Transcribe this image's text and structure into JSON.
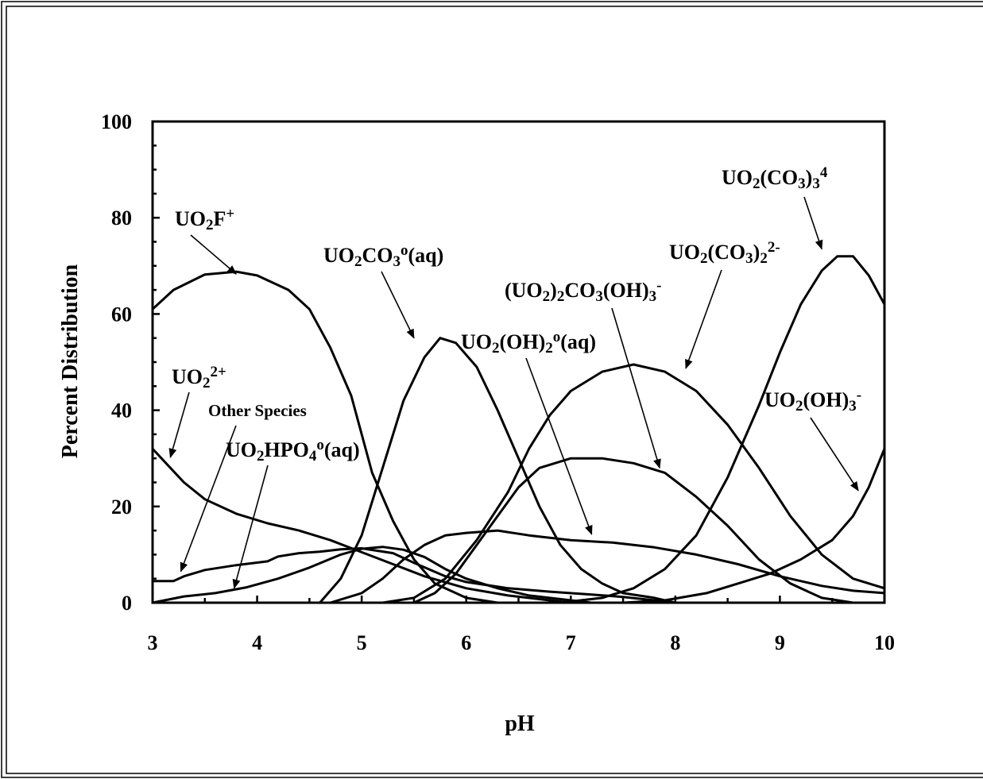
{
  "chart_data": {
    "type": "line",
    "title": "",
    "xlabel": "pH",
    "ylabel": "Percent Distribution",
    "xlim": [
      3,
      10
    ],
    "ylim": [
      0,
      100
    ],
    "x_ticks": [
      "3",
      "4",
      "5",
      "6",
      "7",
      "8",
      "9",
      "10"
    ],
    "y_ticks": [
      "0",
      "20",
      "40",
      "60",
      "80",
      "100"
    ],
    "grid": false,
    "legend": "none",
    "line_color": "#000000",
    "series": [
      {
        "name": "UO2F+",
        "points": [
          [
            3.0,
            61
          ],
          [
            3.2,
            65
          ],
          [
            3.5,
            68.2
          ],
          [
            3.8,
            68.8
          ],
          [
            4.0,
            68
          ],
          [
            4.3,
            65
          ],
          [
            4.5,
            61
          ],
          [
            4.7,
            53
          ],
          [
            4.9,
            43
          ],
          [
            5.1,
            27
          ],
          [
            5.3,
            17
          ],
          [
            5.5,
            9
          ],
          [
            5.7,
            4
          ],
          [
            6.0,
            1
          ],
          [
            6.3,
            0
          ]
        ]
      },
      {
        "name": "UO2CO3o(aq)",
        "points": [
          [
            4.6,
            0
          ],
          [
            4.8,
            5
          ],
          [
            5.0,
            14
          ],
          [
            5.2,
            28
          ],
          [
            5.4,
            42
          ],
          [
            5.6,
            51
          ],
          [
            5.75,
            55
          ],
          [
            5.9,
            54
          ],
          [
            6.1,
            49
          ],
          [
            6.3,
            40
          ],
          [
            6.5,
            30
          ],
          [
            6.7,
            20
          ],
          [
            6.9,
            12
          ],
          [
            7.1,
            7
          ],
          [
            7.3,
            4
          ],
          [
            7.5,
            2
          ],
          [
            7.8,
            1
          ],
          [
            8.0,
            0
          ]
        ]
      },
      {
        "name": "UO2(CO3)2 2-",
        "points": [
          [
            5.2,
            0
          ],
          [
            5.5,
            1
          ],
          [
            5.8,
            5
          ],
          [
            6.1,
            13
          ],
          [
            6.4,
            23
          ],
          [
            6.6,
            32
          ],
          [
            6.8,
            39
          ],
          [
            7.0,
            44
          ],
          [
            7.3,
            48
          ],
          [
            7.6,
            49.5
          ],
          [
            7.9,
            48
          ],
          [
            8.2,
            44
          ],
          [
            8.5,
            37
          ],
          [
            8.8,
            28
          ],
          [
            9.1,
            18
          ],
          [
            9.4,
            10
          ],
          [
            9.7,
            5
          ],
          [
            10.0,
            3
          ]
        ]
      },
      {
        "name": "UO2(CO3)3 4-",
        "points": [
          [
            6.9,
            0
          ],
          [
            7.3,
            1
          ],
          [
            7.6,
            3
          ],
          [
            7.9,
            7
          ],
          [
            8.2,
            14
          ],
          [
            8.5,
            26
          ],
          [
            8.8,
            41
          ],
          [
            9.0,
            52
          ],
          [
            9.2,
            62
          ],
          [
            9.4,
            69
          ],
          [
            9.55,
            72
          ],
          [
            9.7,
            72
          ],
          [
            9.85,
            68
          ],
          [
            10.0,
            62
          ]
        ]
      },
      {
        "name": "(UO2)2CO3(OH)3-",
        "points": [
          [
            5.5,
            0
          ],
          [
            5.7,
            2
          ],
          [
            5.9,
            6
          ],
          [
            6.1,
            12
          ],
          [
            6.3,
            18
          ],
          [
            6.5,
            24
          ],
          [
            6.7,
            28
          ],
          [
            7.0,
            30
          ],
          [
            7.3,
            30
          ],
          [
            7.6,
            29
          ],
          [
            7.9,
            27
          ],
          [
            8.2,
            22
          ],
          [
            8.5,
            16
          ],
          [
            8.8,
            9
          ],
          [
            9.1,
            4
          ],
          [
            9.4,
            1
          ],
          [
            9.7,
            0
          ]
        ]
      },
      {
        "name": "UO2(OH)2o(aq)",
        "points": [
          [
            4.7,
            0
          ],
          [
            5.0,
            2
          ],
          [
            5.2,
            5
          ],
          [
            5.4,
            9
          ],
          [
            5.6,
            12
          ],
          [
            5.8,
            14
          ],
          [
            6.0,
            14.5
          ],
          [
            6.3,
            15
          ],
          [
            6.6,
            14
          ],
          [
            7.0,
            13
          ],
          [
            7.4,
            12.5
          ],
          [
            7.8,
            11.5
          ],
          [
            8.2,
            10
          ],
          [
            8.6,
            8
          ],
          [
            9.0,
            5.5
          ],
          [
            9.4,
            3.5
          ],
          [
            9.7,
            2.5
          ],
          [
            10.0,
            2
          ]
        ]
      },
      {
        "name": "UO2(OH)3-",
        "points": [
          [
            7.5,
            0
          ],
          [
            7.9,
            0.5
          ],
          [
            8.3,
            2
          ],
          [
            8.6,
            4
          ],
          [
            8.9,
            6
          ],
          [
            9.2,
            9
          ],
          [
            9.5,
            13
          ],
          [
            9.7,
            18
          ],
          [
            9.85,
            24
          ],
          [
            10.0,
            32
          ]
        ]
      },
      {
        "name": "UO2 2+",
        "points": [
          [
            3.0,
            32
          ],
          [
            3.15,
            28.5
          ],
          [
            3.3,
            25
          ],
          [
            3.5,
            21.5
          ],
          [
            3.8,
            18.5
          ],
          [
            4.1,
            16.5
          ],
          [
            4.4,
            15
          ],
          [
            4.7,
            13
          ],
          [
            5.0,
            10.5
          ],
          [
            5.3,
            8
          ],
          [
            5.6,
            5.5
          ],
          [
            6.0,
            3
          ],
          [
            6.4,
            1.5
          ],
          [
            6.8,
            0.5
          ],
          [
            7.0,
            0
          ]
        ]
      },
      {
        "name": "Other Species",
        "points": [
          [
            3.0,
            4.5
          ],
          [
            3.2,
            4.5
          ],
          [
            3.3,
            5.5
          ],
          [
            3.5,
            6.8
          ],
          [
            3.8,
            7.8
          ],
          [
            4.1,
            8.6
          ],
          [
            4.2,
            9.6
          ],
          [
            4.4,
            10.3
          ],
          [
            4.6,
            10.6
          ],
          [
            4.8,
            11.1
          ],
          [
            5.0,
            11.3
          ],
          [
            5.3,
            10.3
          ],
          [
            5.5,
            8.3
          ],
          [
            5.8,
            5.5
          ],
          [
            6.0,
            4.3
          ],
          [
            6.4,
            3
          ],
          [
            6.8,
            2.3
          ],
          [
            7.2,
            1.7
          ],
          [
            7.5,
            1.2
          ],
          [
            7.8,
            0.5
          ],
          [
            8.0,
            0
          ]
        ]
      },
      {
        "name": "UO2HPO4o(aq)",
        "points": [
          [
            3.0,
            0
          ],
          [
            3.3,
            1.3
          ],
          [
            3.6,
            2
          ],
          [
            3.9,
            3.2
          ],
          [
            4.2,
            5
          ],
          [
            4.5,
            7.3
          ],
          [
            4.8,
            10
          ],
          [
            5.0,
            11.2
          ],
          [
            5.2,
            11.6
          ],
          [
            5.4,
            11
          ],
          [
            5.6,
            9.5
          ],
          [
            5.8,
            7
          ],
          [
            6.0,
            5
          ],
          [
            6.3,
            3
          ],
          [
            6.6,
            1.5
          ],
          [
            7.0,
            0.5
          ],
          [
            7.2,
            0
          ]
        ]
      }
    ],
    "annotations": [
      {
        "name": "UO2F+",
        "parts": [
          {
            "t": "UO"
          },
          {
            "t": "2",
            "s": "sub"
          },
          {
            "t": "F"
          },
          {
            "t": "+",
            "s": "sup"
          }
        ],
        "at": [
          3.8,
          68.3
        ]
      },
      {
        "name": "UO2CO3o(aq)",
        "parts": [
          {
            "t": "UO"
          },
          {
            "t": "2",
            "s": "sub"
          },
          {
            "t": "CO"
          },
          {
            "t": "3",
            "s": "sub"
          },
          {
            "t": "o",
            "s": "sup"
          },
          {
            "t": "(aq)"
          }
        ],
        "at": [
          5.5,
          55
        ]
      },
      {
        "name": "UO2(CO3)3 4-",
        "parts": [
          {
            "t": "UO"
          },
          {
            "t": "2",
            "s": "sub"
          },
          {
            "t": "(CO"
          },
          {
            "t": "3",
            "s": "sub"
          },
          {
            "t": ")"
          },
          {
            "t": "3",
            "s": "sub"
          },
          {
            "t": "4",
            "s": "sup"
          }
        ],
        "at": [
          9.4,
          73.5
        ]
      },
      {
        "name": "UO2(CO3)2 2-",
        "parts": [
          {
            "t": "UO"
          },
          {
            "t": "2",
            "s": "sub"
          },
          {
            "t": "(CO"
          },
          {
            "t": "3",
            "s": "sub"
          },
          {
            "t": ")"
          },
          {
            "t": "2",
            "s": "sub"
          },
          {
            "t": "2-",
            "s": "sup"
          }
        ],
        "at": [
          8.1,
          48.7
        ]
      },
      {
        "name": "(UO2)2CO3(OH)3-",
        "parts": [
          {
            "t": "(UO"
          },
          {
            "t": "2",
            "s": "sub"
          },
          {
            "t": ")"
          },
          {
            "t": "2",
            "s": "sub"
          },
          {
            "t": "CO"
          },
          {
            "t": "3",
            "s": "sub"
          },
          {
            "t": "(OH)"
          },
          {
            "t": "3",
            "s": "sub"
          },
          {
            "t": "-",
            "s": "sup"
          }
        ],
        "at": [
          7.85,
          28
        ]
      },
      {
        "name": "UO2(OH)2o(aq)",
        "parts": [
          {
            "t": "UO"
          },
          {
            "t": "2",
            "s": "sub"
          },
          {
            "t": "(OH)"
          },
          {
            "t": "2",
            "s": "sub"
          },
          {
            "t": "o",
            "s": "sup"
          },
          {
            "t": "(aq)"
          }
        ],
        "at": [
          7.2,
          14.2
        ]
      },
      {
        "name": "UO2(OH)3-",
        "parts": [
          {
            "t": "UO"
          },
          {
            "t": "2",
            "s": "sub"
          },
          {
            "t": "(OH)"
          },
          {
            "t": "3",
            "s": "sub"
          },
          {
            "t": "-",
            "s": "sup"
          }
        ],
        "at": [
          9.75,
          23.3
        ]
      },
      {
        "name": "UO2 2+",
        "parts": [
          {
            "t": "UO"
          },
          {
            "t": "2",
            "s": "sub"
          },
          {
            "t": "2+",
            "s": "sup"
          }
        ],
        "at": [
          3.17,
          30.2
        ]
      },
      {
        "name": "Other Species",
        "parts": [
          {
            "t": "Other Species"
          }
        ],
        "at": [
          3.27,
          6.5
        ]
      },
      {
        "name": "UO2HPO4o(aq)",
        "parts": [
          {
            "t": "UO"
          },
          {
            "t": "2",
            "s": "sub"
          },
          {
            "t": "HPO"
          },
          {
            "t": "4",
            "s": "sub"
          },
          {
            "t": "o",
            "s": "sup"
          },
          {
            "t": "(aq)"
          }
        ],
        "at": [
          3.78,
          3
        ]
      }
    ]
  }
}
